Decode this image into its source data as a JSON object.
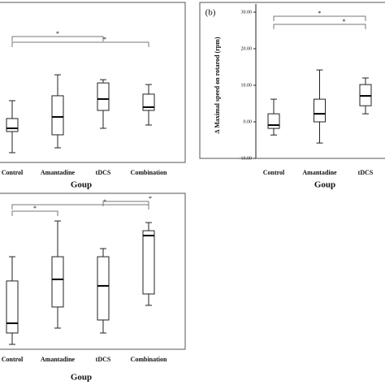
{
  "chart_data": [
    {
      "type": "box",
      "categories": [
        "Control",
        "Amantadine",
        "tDCS",
        "Combination"
      ],
      "xlabel": "Goup",
      "ylim": [
        0,
        100
      ],
      "boxes": [
        {
          "min": 6.6,
          "q1": 20.9,
          "median": 23.1,
          "q3": 29.7,
          "max": 41.8
        },
        {
          "min": 9.9,
          "q1": 18.7,
          "median": 30.8,
          "q3": 45.1,
          "max": 59.3
        },
        {
          "min": 23.1,
          "q1": 35.2,
          "median": 42.9,
          "q3": 53.8,
          "max": 56.0
        },
        {
          "min": 25.3,
          "q1": 35.2,
          "median": 37.4,
          "q3": 46.2,
          "max": 52.7
        }
      ],
      "annotations": [
        {
          "text": "*",
          "from": 0,
          "to": 2
        },
        {
          "text": "*",
          "from": 0,
          "to": 3
        }
      ]
    },
    {
      "type": "box",
      "title": "(b)",
      "categories": [
        "Control",
        "Amantadine",
        "tDCS"
      ],
      "xlabel": "Goup",
      "ylabel": "∆ Maximal speed on rotarod (rpm)",
      "ylim": [
        -10,
        30
      ],
      "yticks": [
        {
          "value": -10,
          "label": "-10.00"
        },
        {
          "value": 0,
          "label": "0.00"
        },
        {
          "value": 10,
          "label": "10.00"
        },
        {
          "value": 20,
          "label": "20.00"
        },
        {
          "value": 30,
          "label": "30.00"
        }
      ],
      "boxes": [
        {
          "min": -3.6,
          "q1": -1.8,
          "median": -0.9,
          "q3": 2.2,
          "max": 6.2
        },
        {
          "min": -5.8,
          "q1": 0,
          "median": 2.2,
          "q3": 6.2,
          "max": 14.2
        },
        {
          "min": 2.2,
          "q1": 4.4,
          "median": 7.1,
          "q3": 10.2,
          "max": 12
        }
      ],
      "annotations": [
        {
          "text": "*",
          "from": 0,
          "to": 2
        },
        {
          "text": "*",
          "from": 0,
          "to": 2
        }
      ]
    },
    {
      "type": "box",
      "categories": [
        "Control",
        "Amantadine",
        "tDCS",
        "Combination"
      ],
      "xlabel": "Goup",
      "ylim": [
        0,
        100
      ],
      "boxes": [
        {
          "min": 3.3,
          "q1": 11.0,
          "median": 17.6,
          "q3": 46.2,
          "max": 62.6
        },
        {
          "min": 14.3,
          "q1": 28.6,
          "median": 47.3,
          "q3": 62.6,
          "max": 86.8
        },
        {
          "min": 11.0,
          "q1": 19.8,
          "median": 42.9,
          "q3": 62.6,
          "max": 68.1
        },
        {
          "min": 29.7,
          "q1": 37.4,
          "median": 76.9,
          "q3": 80.2,
          "max": 85.7
        }
      ],
      "annotations": [
        {
          "text": "*",
          "from": 0,
          "to": 1
        },
        {
          "text": "*",
          "from": 0,
          "to": 3
        },
        {
          "text": "*",
          "from": 2,
          "to": 3
        }
      ]
    }
  ]
}
